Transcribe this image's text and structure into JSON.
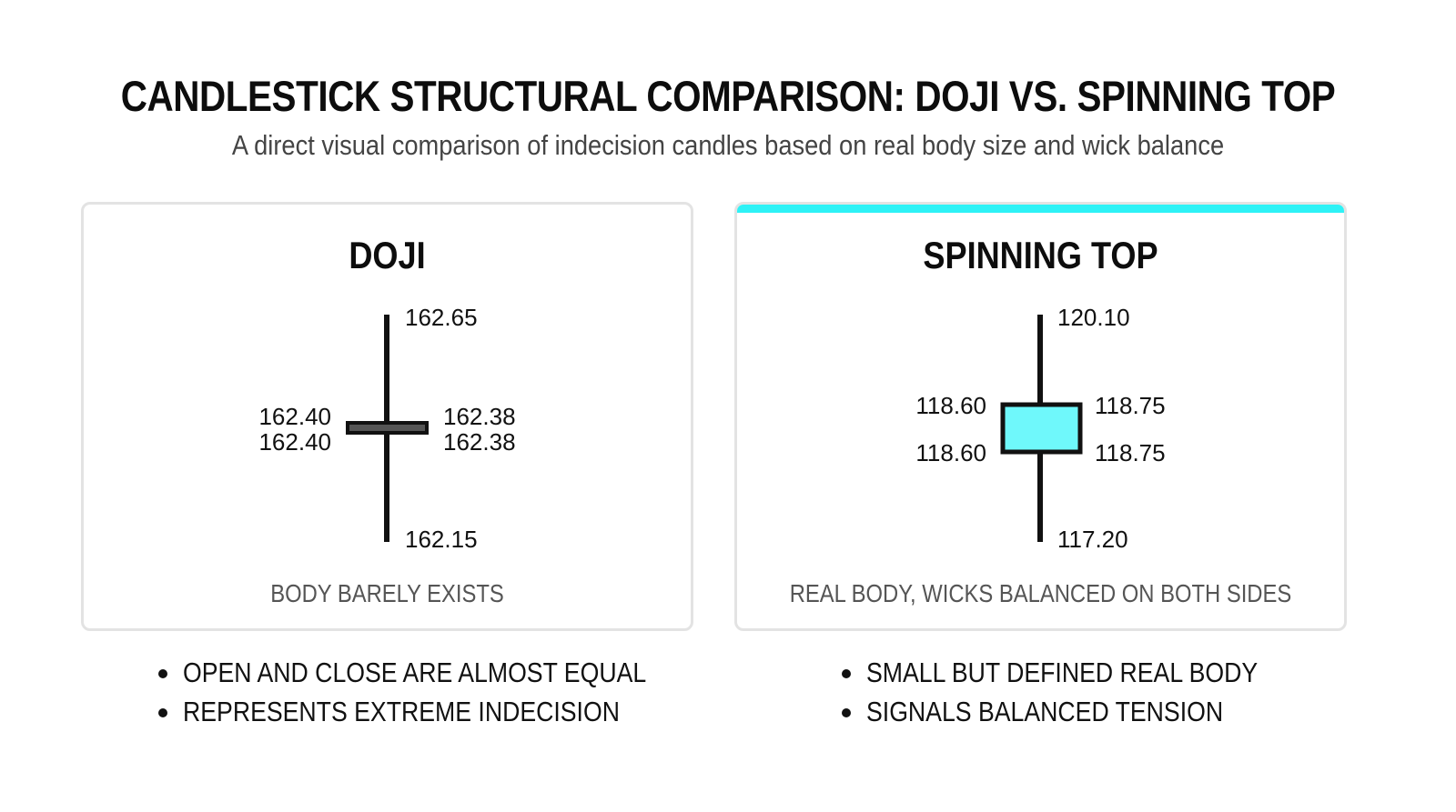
{
  "title": "CANDLESTICK STRUCTURAL COMPARISON: DOJI VS. SPINNING TOP",
  "subtitle": "A direct visual comparison of indecision candles based on real body size and wick balance",
  "accent_color": "#2ef2f6",
  "panels": [
    {
      "name": "DOJI",
      "high": "162.65",
      "low": "162.15",
      "open_left_top": "162.40",
      "open_left_bottom": "162.40",
      "close_right_top": "162.38",
      "close_right_bottom": "162.38",
      "body_color": "#555555",
      "caption": "BODY BARELY EXISTS",
      "bullets": [
        "OPEN AND CLOSE ARE ALMOST EQUAL",
        "REPRESENTS EXTREME INDECISION"
      ]
    },
    {
      "name": "SPINNING TOP",
      "high": "120.10",
      "low": "117.20",
      "open_left_top": "118.60",
      "open_left_bottom": "118.60",
      "close_right_top": "118.75",
      "close_right_bottom": "118.75",
      "body_color": "#6ff8fb",
      "caption": "REAL BODY, WICKS BALANCED ON BOTH SIDES",
      "bullets": [
        "SMALL BUT DEFINED REAL BODY",
        "SIGNALS BALANCED TENSION"
      ]
    }
  ]
}
